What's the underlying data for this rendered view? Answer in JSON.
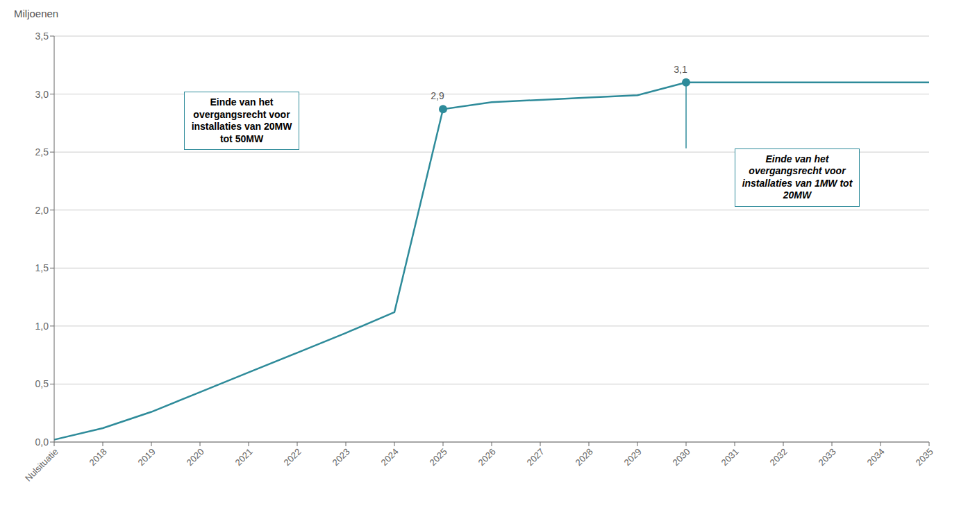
{
  "chart_data": {
    "type": "line",
    "ylabel": "Miljoenen",
    "categories": [
      "Nulsituatie",
      "2018",
      "2019",
      "2020",
      "2021",
      "2022",
      "2023",
      "2024",
      "2025",
      "2026",
      "2027",
      "2028",
      "2029",
      "2030",
      "2031",
      "2032",
      "2033",
      "2034",
      "2035"
    ],
    "values": [
      0.02,
      0.12,
      0.26,
      0.43,
      0.6,
      0.77,
      0.94,
      1.12,
      2.87,
      2.93,
      2.95,
      2.97,
      2.99,
      3.1,
      3.1,
      3.1,
      3.1,
      3.1,
      3.1
    ],
    "value_labels": [
      null,
      null,
      null,
      null,
      null,
      null,
      null,
      null,
      "2,9",
      null,
      null,
      null,
      null,
      "3,1",
      null,
      null,
      null,
      null,
      null
    ],
    "color": "#2E8B9A",
    "marker": "circle",
    "ylim": [
      0.0,
      3.5
    ],
    "yticks": [
      {
        "value": 0.0,
        "label": "0,0"
      },
      {
        "value": 0.5,
        "label": "0,5"
      },
      {
        "value": 1.0,
        "label": "1,0"
      },
      {
        "value": 1.5,
        "label": "1,5"
      },
      {
        "value": 2.0,
        "label": "2,0"
      },
      {
        "value": 2.5,
        "label": "2,5"
      },
      {
        "value": 3.0,
        "label": "3,0"
      },
      {
        "value": 3.5,
        "label": "3,5"
      }
    ],
    "grid": true,
    "annotations": [
      "Einde van het\novergangsrecht voor\ninstallaties van 20MW\ntot 50MW",
      "Einde van het\novergangsrecht voor\ninstallaties van 1MW tot\n20MW"
    ]
  }
}
